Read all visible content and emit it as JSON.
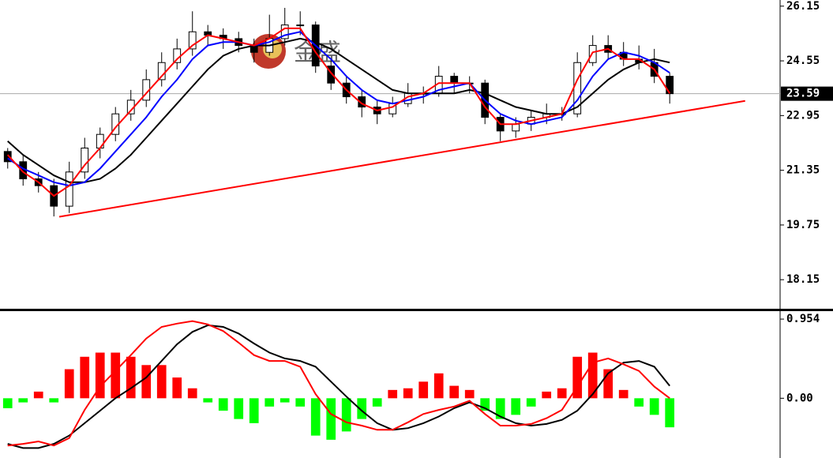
{
  "chart_data": [
    {
      "type": "candlestick",
      "open": [
        21.9,
        21.6,
        21.1,
        20.9,
        20.3,
        21.3,
        22.0,
        22.4,
        23.0,
        23.4,
        24.0,
        24.5,
        24.9,
        25.4,
        25.3,
        25.2,
        25.0,
        24.8,
        25.2,
        25.6,
        25.6,
        24.4,
        23.9,
        23.5,
        23.2,
        23.0,
        23.3,
        23.6,
        23.6,
        24.1,
        23.9,
        23.9,
        22.9,
        22.5,
        22.7,
        22.9,
        23.0,
        23.0,
        24.5,
        25.0,
        24.8,
        24.6,
        24.5,
        24.1
      ],
      "high": [
        22.0,
        21.8,
        21.3,
        21.1,
        21.6,
        22.3,
        22.6,
        23.2,
        23.7,
        24.3,
        24.8,
        25.2,
        26.0,
        25.6,
        25.5,
        25.4,
        25.2,
        25.9,
        26.1,
        26.0,
        25.7,
        24.6,
        24.1,
        23.7,
        23.4,
        23.5,
        23.9,
        23.8,
        24.4,
        24.2,
        24.1,
        24.0,
        23.0,
        22.9,
        23.1,
        23.3,
        23.2,
        24.8,
        25.3,
        25.3,
        25.1,
        25.0,
        24.9,
        24.2
      ],
      "low": [
        21.4,
        20.9,
        20.7,
        20.0,
        20.1,
        21.1,
        21.7,
        22.2,
        22.8,
        23.2,
        23.8,
        24.3,
        24.7,
        25.0,
        24.9,
        24.8,
        24.5,
        24.7,
        25.0,
        25.3,
        24.2,
        23.7,
        23.3,
        22.9,
        22.7,
        22.9,
        23.2,
        23.3,
        23.5,
        23.6,
        23.6,
        22.7,
        22.2,
        22.3,
        22.5,
        22.7,
        22.8,
        22.9,
        24.4,
        24.6,
        24.4,
        24.3,
        23.9,
        23.3
      ],
      "close": [
        21.6,
        21.1,
        20.9,
        20.3,
        21.3,
        22.0,
        22.4,
        23.0,
        23.4,
        24.0,
        24.5,
        24.9,
        25.4,
        25.3,
        25.2,
        25.0,
        24.8,
        25.2,
        25.6,
        25.6,
        24.4,
        23.9,
        23.5,
        23.2,
        23.0,
        23.3,
        23.6,
        23.6,
        24.1,
        23.9,
        23.9,
        22.9,
        22.5,
        22.7,
        22.9,
        23.0,
        23.0,
        24.5,
        25.0,
        24.8,
        24.6,
        24.5,
        24.1,
        23.59
      ],
      "up_color": "#ffffff",
      "down_color": "#000000",
      "lines": [
        {
          "color": "#000000",
          "values": [
            22.2,
            21.8,
            21.5,
            21.2,
            21.0,
            21.0,
            21.1,
            21.4,
            21.8,
            22.3,
            22.8,
            23.3,
            23.8,
            24.3,
            24.7,
            24.9,
            25.0,
            25.0,
            25.1,
            25.2,
            25.1,
            24.9,
            24.6,
            24.3,
            24.0,
            23.7,
            23.6,
            23.6,
            23.6,
            23.6,
            23.7,
            23.6,
            23.4,
            23.2,
            23.1,
            23.0,
            23.0,
            23.2,
            23.6,
            24.0,
            24.3,
            24.5,
            24.6,
            24.5
          ]
        },
        {
          "color": "#0000ff",
          "values": [
            21.7,
            21.4,
            21.2,
            21.0,
            20.9,
            21.0,
            21.4,
            21.9,
            22.4,
            22.9,
            23.5,
            24.0,
            24.6,
            25.0,
            25.1,
            25.1,
            25.0,
            25.1,
            25.3,
            25.4,
            25.0,
            24.6,
            24.1,
            23.7,
            23.4,
            23.3,
            23.4,
            23.5,
            23.7,
            23.8,
            23.9,
            23.4,
            23.0,
            22.8,
            22.7,
            22.8,
            22.9,
            23.4,
            24.1,
            24.6,
            24.8,
            24.7,
            24.5,
            24.2
          ]
        },
        {
          "color": "#ff0000",
          "values": [
            21.8,
            21.3,
            21.0,
            20.6,
            20.9,
            21.5,
            22.0,
            22.6,
            23.1,
            23.6,
            24.1,
            24.6,
            25.0,
            25.3,
            25.2,
            25.1,
            25.0,
            25.2,
            25.5,
            25.5,
            24.8,
            24.2,
            23.7,
            23.3,
            23.1,
            23.2,
            23.5,
            23.6,
            23.9,
            23.9,
            23.9,
            23.2,
            22.7,
            22.7,
            22.8,
            22.9,
            23.0,
            24.0,
            24.8,
            24.9,
            24.6,
            24.6,
            24.3,
            23.6
          ]
        }
      ],
      "trendline": {
        "x": [
          3.35,
          47.9
        ],
        "values": [
          19.99,
          23.38
        ],
        "color": "#ff0000"
      },
      "last_price": 23.59,
      "xlim": [
        -0.5,
        50.17
      ],
      "ylim": [
        17.3,
        26.33
      ],
      "yticks": [
        26.15,
        24.55,
        22.95,
        21.35,
        19.75,
        18.15
      ],
      "watermark": "金盛"
    },
    {
      "type": "macd",
      "histogram": [
        -0.12,
        -0.05,
        0.08,
        -0.05,
        0.35,
        0.5,
        0.55,
        0.55,
        0.5,
        0.4,
        0.4,
        0.25,
        0.12,
        -0.05,
        -0.15,
        -0.25,
        -0.3,
        -0.1,
        -0.05,
        -0.1,
        -0.45,
        -0.5,
        -0.4,
        -0.25,
        -0.1,
        0.1,
        0.12,
        0.2,
        0.3,
        0.15,
        0.1,
        -0.15,
        -0.25,
        -0.2,
        -0.1,
        0.08,
        0.12,
        0.5,
        0.55,
        0.35,
        0.1,
        -0.1,
        -0.2,
        -0.35
      ],
      "up_color": "#ff0000",
      "down_color": "#00ff00",
      "lines": [
        {
          "color": "#000000",
          "values": [
            -0.55,
            -0.6,
            -0.6,
            -0.55,
            -0.45,
            -0.3,
            -0.15,
            0,
            0.12,
            0.25,
            0.45,
            0.65,
            0.8,
            0.88,
            0.86,
            0.78,
            0.66,
            0.55,
            0.48,
            0.45,
            0.38,
            0.2,
            0.02,
            -0.15,
            -0.3,
            -0.38,
            -0.36,
            -0.3,
            -0.22,
            -0.12,
            -0.05,
            -0.12,
            -0.22,
            -0.3,
            -0.33,
            -0.31,
            -0.26,
            -0.15,
            0.05,
            0.3,
            0.43,
            0.45,
            0.38,
            0.15
          ]
        },
        {
          "color": "#ff0000",
          "values": [
            -0.57,
            -0.55,
            -0.52,
            -0.57,
            -0.48,
            -0.14,
            0.14,
            0.33,
            0.52,
            0.72,
            0.86,
            0.9,
            0.93,
            0.89,
            0.81,
            0.67,
            0.52,
            0.45,
            0.45,
            0.38,
            0.05,
            -0.19,
            -0.29,
            -0.33,
            -0.38,
            -0.38,
            -0.29,
            -0.19,
            -0.14,
            -0.1,
            -0.03,
            -0.19,
            -0.33,
            -0.33,
            -0.31,
            -0.24,
            -0.14,
            0.14,
            0.43,
            0.48,
            0.41,
            0.33,
            0.14,
            0
          ]
        }
      ],
      "xlim": [
        -0.5,
        50.17
      ],
      "ylim": [
        -0.72,
        1.05
      ],
      "yticks": [
        0.954,
        {
          "value": 0,
          "label": "0.00"
        }
      ]
    }
  ]
}
